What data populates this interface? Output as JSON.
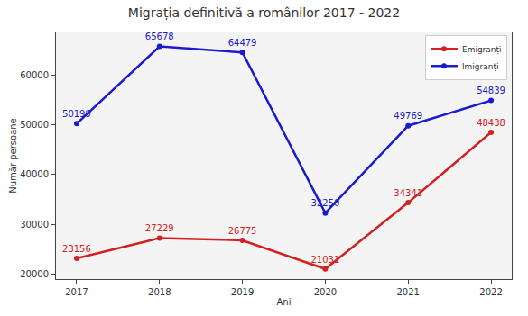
{
  "chart_data": {
    "type": "line",
    "title": "Migrația definitivă a românilor 2017 - 2022",
    "x_label": "Ani",
    "y_label": "Număr persoane",
    "categories": [
      "2017",
      "2018",
      "2019",
      "2020",
      "2021",
      "2022"
    ],
    "series": [
      {
        "name": "Emigranți",
        "color": "#d42020",
        "marker": "circle",
        "line_style": "solid",
        "values": [
          23156,
          27229,
          26775,
          21031,
          34341,
          48438
        ]
      },
      {
        "name": "Imigranți",
        "color": "#1a1ad0",
        "marker": "circle",
        "line_style": "solid",
        "values": [
          50199,
          65678,
          64479,
          32250,
          49769,
          54839
        ]
      }
    ],
    "ylim": [
      19000,
      68500
    ],
    "yticks": [
      20000,
      30000,
      40000,
      50000,
      60000
    ],
    "grid": false,
    "legend": "upper right",
    "data_labels": true
  }
}
